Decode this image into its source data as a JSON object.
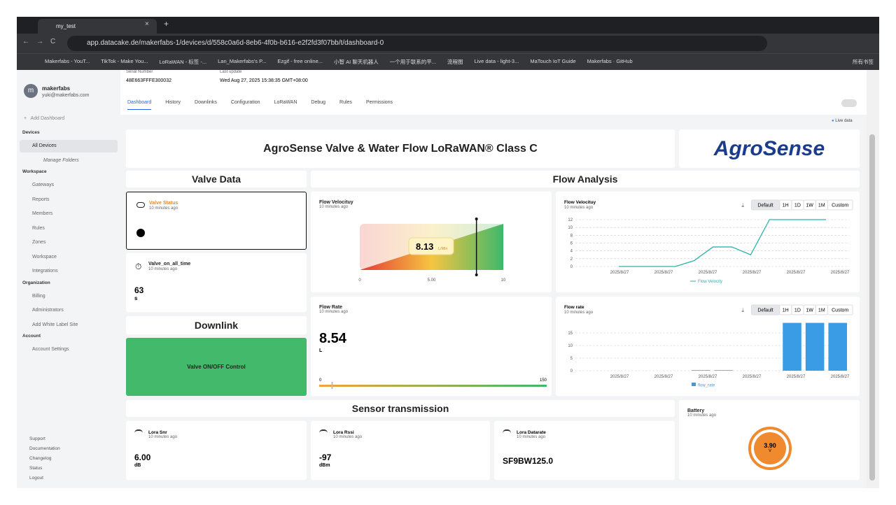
{
  "browser": {
    "tab_title": "my_test",
    "url": "app.datacake.de/makerfabs-1/devices/d/558c0a6d-8eb6-4f0b-b616-e2f2fd3f07bb/t/dashboard-0",
    "bookmarks": [
      "Makerfabs - YouT...",
      "TikTok - Make You...",
      "LoRaWAN - 标签 -...",
      "Lan_Makerfabs's P...",
      "Ezgif - free online...",
      "小智 AI 聊天机器人",
      "一个用于联系的平...",
      "流程图",
      "Live data - light-3...",
      "MaTouch IoT Guide",
      "Makerfabs · GitHub"
    ],
    "all_bookmarks": "所有书签"
  },
  "sidebar": {
    "avatar": "m",
    "user": "makerfabs",
    "email": "yuki@makerfabs.com",
    "add_dashboard": "Add Dashboard",
    "sections": [
      {
        "title": "Devices",
        "items": [
          "All Devices",
          "Manage Folders"
        ]
      },
      {
        "title": "Workspace",
        "items": [
          "Gateways",
          "Reports",
          "Members",
          "Rules",
          "Zones",
          "Workspace",
          "Integrations"
        ]
      },
      {
        "title": "Organization",
        "items": [
          "Billing",
          "Administrators",
          "Add White Label Site"
        ]
      },
      {
        "title": "Account",
        "items": [
          "Account Settings"
        ]
      }
    ],
    "footer": [
      "Support",
      "Documentation",
      "Changelog",
      "Status",
      "Logout"
    ]
  },
  "header": {
    "serial_label": "Serial Number",
    "serial": "48E663FFFE300032",
    "update_label": "Last update",
    "update": "Wed Aug 27, 2025 15:38:35 GMT+08:00",
    "tabs": [
      "Dashboard",
      "History",
      "Downlinks",
      "Configuration",
      "LoRaWAN",
      "Debug",
      "Rules",
      "Permissions"
    ],
    "live": "Live data"
  },
  "dashboard": {
    "title": "AgroSense Valve & Water Flow LoRaWAN® Class C",
    "logo": "AgroSense",
    "sections": {
      "valve": "Valve Data",
      "flow": "Flow Analysis",
      "downlink": "Downlink",
      "sensor": "Sensor transmission"
    },
    "valve_status": {
      "title": "Valve Status",
      "time": "10 minutes ago"
    },
    "valve_on": {
      "title": "Valve_on_all_time",
      "time": "10 minutes ago",
      "value": "63",
      "unit": "s"
    },
    "downlink_button": "Valve ON/OFF Control",
    "gauge": {
      "title": "Flow Velocituy",
      "time": "10 minutes ago",
      "value": 8.13,
      "unit": "L/Min",
      "lim": [
        0,
        10
      ],
      "ticks": [
        0,
        {
          "value": 5,
          "label": "5.00"
        },
        10
      ]
    },
    "flow_rate": {
      "title": "Flow Rate",
      "time": "10 minutes ago",
      "value": 8.54,
      "unit": "L",
      "lim": [
        0,
        150
      ],
      "ticks": [
        0,
        150
      ]
    },
    "snr": {
      "title": "Lora Snr",
      "time": "10 minutes ago",
      "value": "6.00",
      "unit": "dB"
    },
    "rssi": {
      "title": "Lora Rssi",
      "time": "10 minutes ago",
      "value": "-97",
      "unit": "dBm"
    },
    "datarate": {
      "title": "Lora Datarate",
      "time": "10 minutes ago",
      "value": "SF9BW125.0"
    },
    "battery": {
      "title": "Battery",
      "time": "10 minutes ago",
      "value": "3.90",
      "unit": "V"
    }
  },
  "chart_data": [
    {
      "type": "line",
      "title": "Flow Velocituy",
      "subtitle": "10 minutes ago",
      "ranges": [
        "Default",
        "1H",
        "1D",
        "1W",
        "1M",
        "Custom"
      ],
      "x_labels": [
        "2025/8/27",
        "2025/8/27",
        "2025/8/27",
        "2025/8/27",
        "2025/8/27",
        "2025/8/27"
      ],
      "series": [
        {
          "name": "Flow Velocity",
          "color": "#2ab3ab",
          "values": [
            0,
            0,
            0,
            0,
            1.5,
            5,
            5,
            3,
            12,
            12,
            12,
            12
          ]
        }
      ],
      "ylim": [
        0,
        12
      ],
      "yticks": [
        0,
        2,
        4,
        6,
        8,
        10,
        12
      ],
      "grid": true
    },
    {
      "type": "bar",
      "title": "Flow rate",
      "subtitle": "10 minutes ago",
      "ranges": [
        "Default",
        "1H",
        "1D",
        "1W",
        "1M",
        "Custom"
      ],
      "x_labels": [
        "2025/8/27",
        "2025/8/27",
        "2025/8/27",
        "2025/8/27",
        "2025/8/27",
        "2025/8/27"
      ],
      "series": [
        {
          "name": "flow_rate",
          "color": "#3b9ce6",
          "values": [
            0,
            0,
            0,
            0,
            0,
            0.2,
            0.2,
            0,
            0,
            19,
            19,
            19
          ]
        }
      ],
      "ylim": [
        0,
        20
      ],
      "yticks": [
        0,
        5,
        10,
        15
      ],
      "grid": true
    }
  ]
}
